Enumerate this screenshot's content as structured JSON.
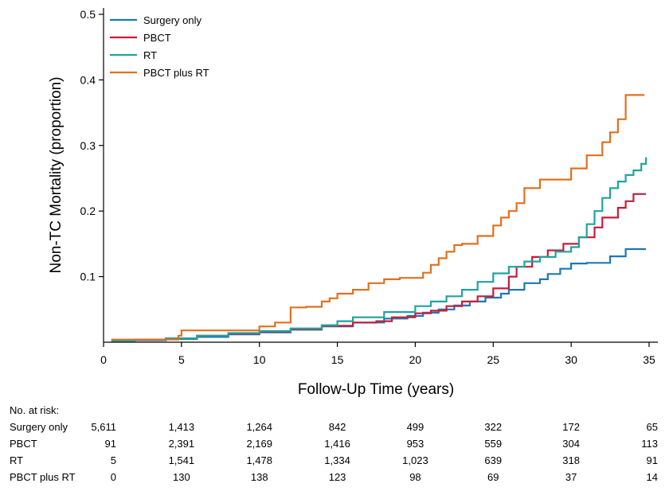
{
  "chart_data": {
    "type": "line",
    "title": "",
    "xlabel": "Follow-Up Time (years)",
    "ylabel": "Non-TC Mortality (proportion)",
    "xlim": [
      0,
      35
    ],
    "ylim": [
      0,
      0.5
    ],
    "x_ticks": [
      0,
      5,
      10,
      15,
      20,
      25,
      30,
      35
    ],
    "y_ticks": [
      0.1,
      0.2,
      0.3,
      0.4,
      0.5
    ],
    "y_tick_labels": [
      "0.1",
      "0.2",
      "0.3",
      "0.4",
      "0.5"
    ],
    "grid": false,
    "legend_position": "top-left",
    "step": true,
    "series": [
      {
        "name": "Surgery only",
        "color": "#1f77b4",
        "points": [
          [
            0.5,
            0.002
          ],
          [
            2,
            0.003
          ],
          [
            4,
            0.005
          ],
          [
            6,
            0.008
          ],
          [
            8,
            0.012
          ],
          [
            10,
            0.015
          ],
          [
            12,
            0.019
          ],
          [
            14,
            0.024
          ],
          [
            16,
            0.03
          ],
          [
            18,
            0.036
          ],
          [
            19.5,
            0.04
          ],
          [
            20.5,
            0.045
          ],
          [
            21.5,
            0.05
          ],
          [
            22.5,
            0.056
          ],
          [
            23.5,
            0.062
          ],
          [
            24.5,
            0.068
          ],
          [
            25.5,
            0.074
          ],
          [
            26,
            0.08
          ],
          [
            27,
            0.09
          ],
          [
            28,
            0.096
          ],
          [
            28.5,
            0.104
          ],
          [
            29.3,
            0.112
          ],
          [
            30,
            0.12
          ],
          [
            31,
            0.121
          ],
          [
            32.5,
            0.131
          ],
          [
            33.5,
            0.142
          ],
          [
            34.8,
            0.142
          ]
        ]
      },
      {
        "name": "PBCT",
        "color": "#c41e3a",
        "points": [
          [
            0.5,
            0.003
          ],
          [
            2,
            0.004
          ],
          [
            4,
            0.006
          ],
          [
            6,
            0.01
          ],
          [
            8,
            0.013
          ],
          [
            10,
            0.016
          ],
          [
            12,
            0.02
          ],
          [
            14,
            0.025
          ],
          [
            16,
            0.03
          ],
          [
            17.5,
            0.032
          ],
          [
            18.5,
            0.038
          ],
          [
            20,
            0.044
          ],
          [
            21,
            0.048
          ],
          [
            22,
            0.055
          ],
          [
            23,
            0.062
          ],
          [
            24,
            0.07
          ],
          [
            25,
            0.082
          ],
          [
            26,
            0.1
          ],
          [
            26.5,
            0.115
          ],
          [
            27.5,
            0.13
          ],
          [
            28.5,
            0.14
          ],
          [
            29.5,
            0.15
          ],
          [
            30.5,
            0.16
          ],
          [
            31.5,
            0.175
          ],
          [
            32,
            0.19
          ],
          [
            33,
            0.205
          ],
          [
            33.5,
            0.215
          ],
          [
            34,
            0.226
          ],
          [
            34.8,
            0.226
          ]
        ]
      },
      {
        "name": "RT",
        "color": "#20a39e",
        "points": [
          [
            0.5,
            0.002
          ],
          [
            2,
            0.004
          ],
          [
            4,
            0.006
          ],
          [
            6,
            0.01
          ],
          [
            8,
            0.014
          ],
          [
            10,
            0.017
          ],
          [
            12,
            0.021
          ],
          [
            14,
            0.026
          ],
          [
            15,
            0.032
          ],
          [
            16,
            0.038
          ],
          [
            18,
            0.046
          ],
          [
            20,
            0.055
          ],
          [
            21,
            0.062
          ],
          [
            22,
            0.07
          ],
          [
            23,
            0.08
          ],
          [
            24,
            0.092
          ],
          [
            25,
            0.105
          ],
          [
            26,
            0.115
          ],
          [
            27,
            0.123
          ],
          [
            28,
            0.13
          ],
          [
            29,
            0.138
          ],
          [
            30,
            0.145
          ],
          [
            30.5,
            0.16
          ],
          [
            31,
            0.18
          ],
          [
            31.5,
            0.2
          ],
          [
            32,
            0.22
          ],
          [
            32.5,
            0.235
          ],
          [
            33,
            0.245
          ],
          [
            33.5,
            0.255
          ],
          [
            34,
            0.262
          ],
          [
            34.5,
            0.272
          ],
          [
            34.8,
            0.282
          ]
        ]
      },
      {
        "name": "PBCT plus RT",
        "color": "#e07020",
        "points": [
          [
            0.5,
            0.004
          ],
          [
            4.8,
            0.01
          ],
          [
            5,
            0.018
          ],
          [
            9.5,
            0.018
          ],
          [
            10,
            0.024
          ],
          [
            11,
            0.03
          ],
          [
            12,
            0.053
          ],
          [
            13,
            0.054
          ],
          [
            14,
            0.062
          ],
          [
            14.5,
            0.067
          ],
          [
            15,
            0.074
          ],
          [
            16,
            0.08
          ],
          [
            17,
            0.09
          ],
          [
            18,
            0.096
          ],
          [
            19,
            0.098
          ],
          [
            20.5,
            0.106
          ],
          [
            21,
            0.118
          ],
          [
            21.5,
            0.128
          ],
          [
            22,
            0.138
          ],
          [
            22.5,
            0.148
          ],
          [
            23,
            0.15
          ],
          [
            24,
            0.162
          ],
          [
            25,
            0.178
          ],
          [
            25.5,
            0.19
          ],
          [
            26,
            0.2
          ],
          [
            26.5,
            0.212
          ],
          [
            27,
            0.235
          ],
          [
            28,
            0.248
          ],
          [
            29.5,
            0.248
          ],
          [
            30,
            0.265
          ],
          [
            31,
            0.285
          ],
          [
            32,
            0.305
          ],
          [
            32.5,
            0.32
          ],
          [
            33,
            0.34
          ],
          [
            33.5,
            0.377
          ],
          [
            34.7,
            0.377
          ]
        ]
      }
    ],
    "risk_table": {
      "title": "No. at risk:",
      "times": [
        0,
        5,
        10,
        15,
        20,
        25,
        30,
        35
      ],
      "rows": [
        {
          "label": "Surgery only",
          "values": [
            "5,611",
            "1,413",
            "1,264",
            "842",
            "499",
            "322",
            "172",
            "65"
          ]
        },
        {
          "label": "PBCT",
          "values": [
            "91",
            "2,391",
            "2,169",
            "1,416",
            "953",
            "559",
            "304",
            "113"
          ]
        },
        {
          "label": "RT",
          "values": [
            "5",
            "1,541",
            "1,478",
            "1,334",
            "1,023",
            "639",
            "318",
            "91"
          ]
        },
        {
          "label": "PBCT plus RT",
          "values": [
            "0",
            "130",
            "138",
            "123",
            "98",
            "69",
            "37",
            "14"
          ]
        }
      ]
    }
  }
}
